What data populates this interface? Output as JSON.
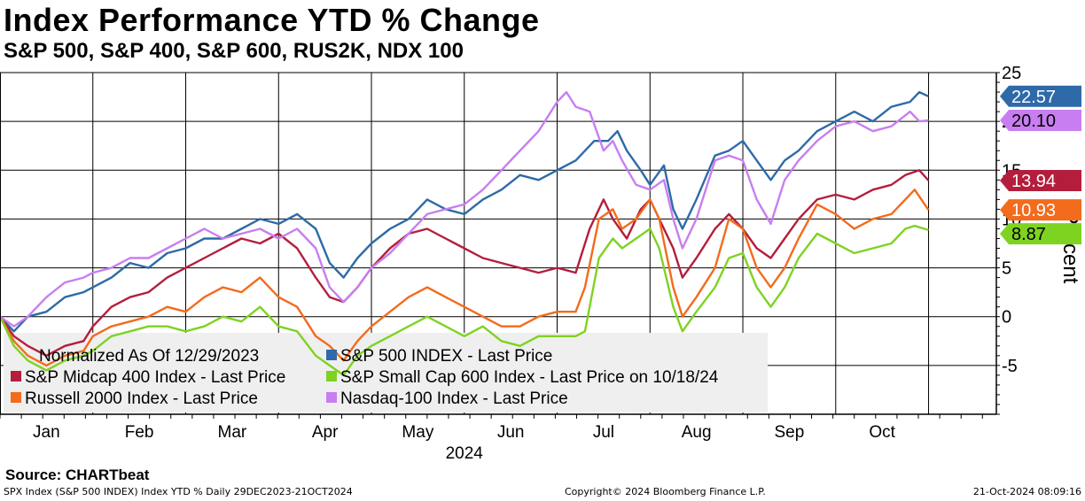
{
  "header": {
    "title": "Index Performance YTD % Change",
    "subtitle": "S&P 500, S&P 400, S&P 600, RUS2K, NDX 100"
  },
  "footer": {
    "source": "Source: CHARTbeat",
    "left": "SPX Index (S&P 500 INDEX) Index YTD %  Daily 29DEC2023-21OCT2024",
    "center": "Copyright© 2024 Bloomberg Finance L.P.",
    "right": "21-Oct-2024 08:09:16"
  },
  "chart_data": {
    "type": "line",
    "title": "Index Performance YTD % Change",
    "subtitle": "S&P 500, S&P 400, S&P 600, RUS2K, NDX 100",
    "ylabel": "Percent",
    "xlabel": "2024",
    "ylim": [
      -10,
      25
    ],
    "yticks": [
      -5,
      0,
      5,
      10,
      15,
      20,
      25
    ],
    "xlim": [
      0,
      10.73
    ],
    "x_ticks": [
      {
        "label": "Jan",
        "x": 0.5
      },
      {
        "label": "Feb",
        "x": 1.5
      },
      {
        "label": "Mar",
        "x": 2.5
      },
      {
        "label": "Apr",
        "x": 3.5
      },
      {
        "label": "May",
        "x": 4.5
      },
      {
        "label": "Jun",
        "x": 5.5
      },
      {
        "label": "Jul",
        "x": 6.5
      },
      {
        "label": "Aug",
        "x": 7.5
      },
      {
        "label": "Sep",
        "x": 8.5
      },
      {
        "label": "Oct",
        "x": 9.5
      }
    ],
    "x_year_label": "2024",
    "grid": true,
    "legend_position": "bottom-left",
    "legend_note": "Normalized As Of 12/29/2023",
    "series": [
      {
        "name": "S&P 500 INDEX - Last Price",
        "color": "#2e6aa8",
        "last_label": "22.57",
        "points": [
          [
            0,
            0
          ],
          [
            0.15,
            -1.5
          ],
          [
            0.3,
            0
          ],
          [
            0.5,
            0.5
          ],
          [
            0.7,
            2
          ],
          [
            0.9,
            2.5
          ],
          [
            1.0,
            3
          ],
          [
            1.2,
            4
          ],
          [
            1.4,
            5.5
          ],
          [
            1.6,
            5
          ],
          [
            1.8,
            6.5
          ],
          [
            2.0,
            7
          ],
          [
            2.2,
            8
          ],
          [
            2.4,
            8
          ],
          [
            2.6,
            9
          ],
          [
            2.8,
            10
          ],
          [
            3.0,
            9.5
          ],
          [
            3.2,
            10.5
          ],
          [
            3.4,
            9
          ],
          [
            3.55,
            5.5
          ],
          [
            3.7,
            4
          ],
          [
            3.85,
            6
          ],
          [
            4.0,
            7.5
          ],
          [
            4.2,
            9
          ],
          [
            4.4,
            10
          ],
          [
            4.6,
            12
          ],
          [
            4.8,
            11
          ],
          [
            5.0,
            10.5
          ],
          [
            5.2,
            12
          ],
          [
            5.4,
            13
          ],
          [
            5.6,
            14.5
          ],
          [
            5.8,
            14
          ],
          [
            6.0,
            15
          ],
          [
            6.2,
            16
          ],
          [
            6.4,
            18
          ],
          [
            6.55,
            18
          ],
          [
            6.65,
            19
          ],
          [
            6.75,
            17
          ],
          [
            6.9,
            15
          ],
          [
            7.0,
            13.5
          ],
          [
            7.15,
            15.5
          ],
          [
            7.25,
            11
          ],
          [
            7.35,
            9
          ],
          [
            7.5,
            12
          ],
          [
            7.7,
            16.5
          ],
          [
            7.85,
            17
          ],
          [
            8.0,
            18
          ],
          [
            8.15,
            16
          ],
          [
            8.3,
            14
          ],
          [
            8.45,
            16
          ],
          [
            8.6,
            17
          ],
          [
            8.8,
            19
          ],
          [
            9.0,
            20
          ],
          [
            9.2,
            21
          ],
          [
            9.4,
            20
          ],
          [
            9.6,
            21.5
          ],
          [
            9.8,
            22
          ],
          [
            9.9,
            23
          ],
          [
            10.0,
            22.57
          ]
        ]
      },
      {
        "name": "S&P Midcap 400 Index - Last Price",
        "color": "#b41e3c",
        "last_label": "13.94",
        "points": [
          [
            0,
            0
          ],
          [
            0.15,
            -2
          ],
          [
            0.3,
            -3
          ],
          [
            0.5,
            -4
          ],
          [
            0.7,
            -3
          ],
          [
            0.9,
            -2.5
          ],
          [
            1.0,
            -1
          ],
          [
            1.2,
            1
          ],
          [
            1.4,
            2
          ],
          [
            1.6,
            2.5
          ],
          [
            1.8,
            4
          ],
          [
            2.0,
            5
          ],
          [
            2.2,
            6
          ],
          [
            2.4,
            7
          ],
          [
            2.6,
            8
          ],
          [
            2.8,
            7.5
          ],
          [
            3.0,
            8.5
          ],
          [
            3.2,
            7
          ],
          [
            3.4,
            4
          ],
          [
            3.55,
            2
          ],
          [
            3.7,
            1.5
          ],
          [
            3.85,
            3
          ],
          [
            4.0,
            5
          ],
          [
            4.2,
            7
          ],
          [
            4.4,
            8.5
          ],
          [
            4.6,
            9
          ],
          [
            4.8,
            8
          ],
          [
            5.0,
            7
          ],
          [
            5.2,
            6
          ],
          [
            5.4,
            5.5
          ],
          [
            5.6,
            5
          ],
          [
            5.8,
            4.5
          ],
          [
            6.0,
            5
          ],
          [
            6.2,
            4.5
          ],
          [
            6.35,
            9
          ],
          [
            6.5,
            12
          ],
          [
            6.6,
            10
          ],
          [
            6.75,
            8
          ],
          [
            6.9,
            11
          ],
          [
            7.0,
            12
          ],
          [
            7.1,
            10
          ],
          [
            7.25,
            7
          ],
          [
            7.35,
            4
          ],
          [
            7.5,
            6
          ],
          [
            7.7,
            9
          ],
          [
            7.85,
            10.5
          ],
          [
            8.0,
            9
          ],
          [
            8.15,
            7
          ],
          [
            8.3,
            6
          ],
          [
            8.45,
            8
          ],
          [
            8.6,
            10
          ],
          [
            8.8,
            12
          ],
          [
            9.0,
            12.5
          ],
          [
            9.2,
            12
          ],
          [
            9.4,
            13
          ],
          [
            9.6,
            13.5
          ],
          [
            9.75,
            14.5
          ],
          [
            9.9,
            15
          ],
          [
            10.0,
            13.94
          ]
        ]
      },
      {
        "name": "Russell 2000 Index - Last Price",
        "color": "#f36b1c",
        "last_label": "10.93",
        "points": [
          [
            0,
            0
          ],
          [
            0.15,
            -2.5
          ],
          [
            0.3,
            -4
          ],
          [
            0.5,
            -5
          ],
          [
            0.7,
            -4
          ],
          [
            0.9,
            -3.5
          ],
          [
            1.0,
            -2
          ],
          [
            1.2,
            -1
          ],
          [
            1.4,
            -0.5
          ],
          [
            1.6,
            0
          ],
          [
            1.8,
            1
          ],
          [
            2.0,
            0.5
          ],
          [
            2.2,
            2
          ],
          [
            2.4,
            3
          ],
          [
            2.6,
            2.5
          ],
          [
            2.8,
            4
          ],
          [
            3.0,
            2
          ],
          [
            3.2,
            1
          ],
          [
            3.4,
            -2
          ],
          [
            3.55,
            -3
          ],
          [
            3.7,
            -4.5
          ],
          [
            3.85,
            -2.5
          ],
          [
            4.0,
            -1
          ],
          [
            4.2,
            0.5
          ],
          [
            4.4,
            2
          ],
          [
            4.6,
            3
          ],
          [
            4.8,
            2
          ],
          [
            5.0,
            1
          ],
          [
            5.2,
            0
          ],
          [
            5.4,
            -1
          ],
          [
            5.6,
            -1
          ],
          [
            5.8,
            0
          ],
          [
            6.0,
            0.5
          ],
          [
            6.2,
            0.5
          ],
          [
            6.3,
            3
          ],
          [
            6.45,
            10
          ],
          [
            6.6,
            11
          ],
          [
            6.7,
            9
          ],
          [
            6.85,
            10
          ],
          [
            7.0,
            12
          ],
          [
            7.1,
            10
          ],
          [
            7.25,
            3
          ],
          [
            7.35,
            0
          ],
          [
            7.5,
            2
          ],
          [
            7.7,
            5
          ],
          [
            7.85,
            10
          ],
          [
            8.0,
            9
          ],
          [
            8.15,
            5
          ],
          [
            8.3,
            3
          ],
          [
            8.45,
            5
          ],
          [
            8.6,
            8
          ],
          [
            8.8,
            11.5
          ],
          [
            9.0,
            10.5
          ],
          [
            9.2,
            9
          ],
          [
            9.4,
            10
          ],
          [
            9.6,
            10.5
          ],
          [
            9.75,
            12
          ],
          [
            9.85,
            13
          ],
          [
            10.0,
            10.93
          ]
        ]
      },
      {
        "name": "S&P Small Cap 600 Index - Last Price on 10/18/24",
        "color": "#7ed321",
        "last_label": "8.87",
        "points": [
          [
            0,
            0
          ],
          [
            0.15,
            -3
          ],
          [
            0.3,
            -4.5
          ],
          [
            0.5,
            -5.5
          ],
          [
            0.7,
            -4.5
          ],
          [
            0.9,
            -4
          ],
          [
            1.0,
            -3.5
          ],
          [
            1.2,
            -2
          ],
          [
            1.4,
            -1.5
          ],
          [
            1.6,
            -1
          ],
          [
            1.8,
            -1
          ],
          [
            2.0,
            -1.5
          ],
          [
            2.2,
            -1
          ],
          [
            2.4,
            0
          ],
          [
            2.6,
            -0.5
          ],
          [
            2.8,
            1
          ],
          [
            3.0,
            -1
          ],
          [
            3.2,
            -1.5
          ],
          [
            3.4,
            -4
          ],
          [
            3.55,
            -5
          ],
          [
            3.7,
            -6
          ],
          [
            3.85,
            -4
          ],
          [
            4.0,
            -3
          ],
          [
            4.2,
            -2
          ],
          [
            4.4,
            -1
          ],
          [
            4.6,
            0
          ],
          [
            4.8,
            -1
          ],
          [
            5.0,
            -2
          ],
          [
            5.2,
            -1
          ],
          [
            5.4,
            -2.5
          ],
          [
            5.6,
            -3
          ],
          [
            5.8,
            -2
          ],
          [
            6.0,
            -2
          ],
          [
            6.2,
            -2
          ],
          [
            6.3,
            -1.5
          ],
          [
            6.45,
            6
          ],
          [
            6.6,
            8
          ],
          [
            6.7,
            7
          ],
          [
            6.85,
            8
          ],
          [
            7.0,
            9
          ],
          [
            7.1,
            7
          ],
          [
            7.25,
            1
          ],
          [
            7.35,
            -1.5
          ],
          [
            7.5,
            0.5
          ],
          [
            7.7,
            3
          ],
          [
            7.85,
            6
          ],
          [
            8.0,
            6.5
          ],
          [
            8.15,
            3
          ],
          [
            8.3,
            1
          ],
          [
            8.45,
            3
          ],
          [
            8.6,
            6
          ],
          [
            8.8,
            8.5
          ],
          [
            9.0,
            7.5
          ],
          [
            9.2,
            6.5
          ],
          [
            9.4,
            7
          ],
          [
            9.6,
            7.5
          ],
          [
            9.75,
            9
          ],
          [
            9.85,
            9.3
          ],
          [
            10.0,
            8.87
          ]
        ]
      },
      {
        "name": "Nasdaq-100 Index - Last Price",
        "color": "#c87ef0",
        "last_label": "20.10",
        "points": [
          [
            0,
            0
          ],
          [
            0.15,
            -1
          ],
          [
            0.3,
            0
          ],
          [
            0.5,
            2
          ],
          [
            0.7,
            3.5
          ],
          [
            0.9,
            4
          ],
          [
            1.0,
            4.5
          ],
          [
            1.2,
            5
          ],
          [
            1.4,
            6
          ],
          [
            1.6,
            6
          ],
          [
            1.8,
            7
          ],
          [
            2.0,
            8
          ],
          [
            2.2,
            9
          ],
          [
            2.4,
            8
          ],
          [
            2.6,
            8.5
          ],
          [
            2.8,
            9
          ],
          [
            3.0,
            8
          ],
          [
            3.2,
            9
          ],
          [
            3.4,
            7
          ],
          [
            3.55,
            3
          ],
          [
            3.7,
            1.5
          ],
          [
            3.85,
            3
          ],
          [
            4.0,
            5
          ],
          [
            4.2,
            6.5
          ],
          [
            4.4,
            8.5
          ],
          [
            4.6,
            10.5
          ],
          [
            4.8,
            11
          ],
          [
            5.0,
            11.5
          ],
          [
            5.2,
            13
          ],
          [
            5.4,
            15
          ],
          [
            5.6,
            17
          ],
          [
            5.8,
            19
          ],
          [
            6.0,
            22
          ],
          [
            6.1,
            23
          ],
          [
            6.2,
            21.5
          ],
          [
            6.35,
            21
          ],
          [
            6.5,
            17
          ],
          [
            6.6,
            18
          ],
          [
            6.7,
            16
          ],
          [
            6.85,
            13.5
          ],
          [
            7.0,
            13
          ],
          [
            7.15,
            14
          ],
          [
            7.25,
            10
          ],
          [
            7.35,
            7
          ],
          [
            7.5,
            10
          ],
          [
            7.7,
            16
          ],
          [
            7.85,
            16.5
          ],
          [
            8.0,
            16
          ],
          [
            8.15,
            12
          ],
          [
            8.3,
            9.5
          ],
          [
            8.45,
            14
          ],
          [
            8.6,
            16
          ],
          [
            8.8,
            18
          ],
          [
            9.0,
            19.5
          ],
          [
            9.2,
            20
          ],
          [
            9.4,
            19
          ],
          [
            9.6,
            19.5
          ],
          [
            9.8,
            21
          ],
          [
            9.9,
            20
          ],
          [
            10.0,
            20.1
          ]
        ]
      }
    ]
  }
}
